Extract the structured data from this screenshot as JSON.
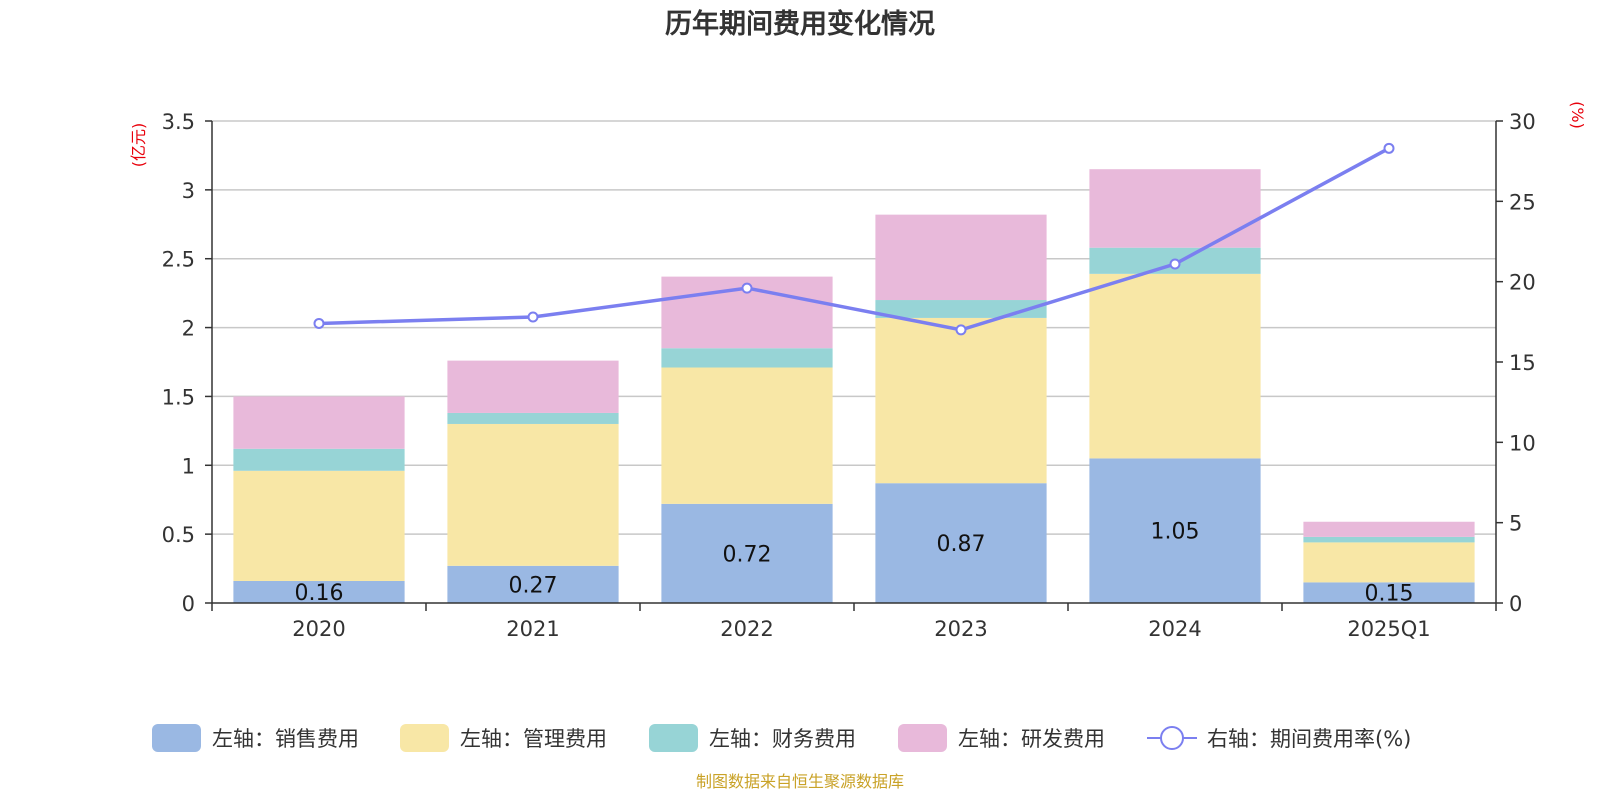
{
  "chart_data": {
    "type": "bar",
    "title": "历年期间费用变化情况",
    "categories": [
      "2020",
      "2021",
      "2022",
      "2023",
      "2024",
      "2025Q1"
    ],
    "left_axis": {
      "unit": "(亿元)",
      "ylim": [
        0,
        3.5
      ],
      "ticks": [
        "0",
        "0.5",
        "1",
        "1.5",
        "2",
        "2.5",
        "3",
        "3.5"
      ]
    },
    "right_axis": {
      "unit": "(%)",
      "ylim": [
        0,
        30
      ],
      "ticks": [
        "0",
        "5",
        "10",
        "15",
        "20",
        "25",
        "30"
      ]
    },
    "series": [
      {
        "name": "左轴：销售费用",
        "color": "#9ab8e3",
        "values": [
          0.16,
          0.27,
          0.72,
          0.87,
          1.05,
          0.15
        ],
        "labels": [
          "0.16",
          "0.27",
          "0.72",
          "0.87",
          "1.05",
          "0.15"
        ]
      },
      {
        "name": "左轴：管理费用",
        "color": "#f8e7a6",
        "values": [
          0.8,
          1.03,
          0.99,
          1.2,
          1.34,
          0.29
        ]
      },
      {
        "name": "左轴：财务费用",
        "color": "#97d4d6",
        "values": [
          0.16,
          0.08,
          0.14,
          0.13,
          0.19,
          0.04
        ]
      },
      {
        "name": "左轴：研发费用",
        "color": "#e8b9da",
        "values": [
          0.38,
          0.38,
          0.52,
          0.62,
          0.57,
          0.11
        ]
      }
    ],
    "line_series": {
      "name": "右轴：期间费用率(%)",
      "color": "#7b7ff0",
      "values": [
        17.4,
        17.8,
        19.6,
        17.0,
        21.1,
        28.3
      ]
    },
    "grid": true,
    "legend_position": "bottom"
  },
  "source": {
    "text": "制图数据来自恒生聚源数据库",
    "color": "#c9a227"
  },
  "colors": {
    "axis": "#333333",
    "grid": "#c8c8c8",
    "unit": "#e8000b"
  }
}
